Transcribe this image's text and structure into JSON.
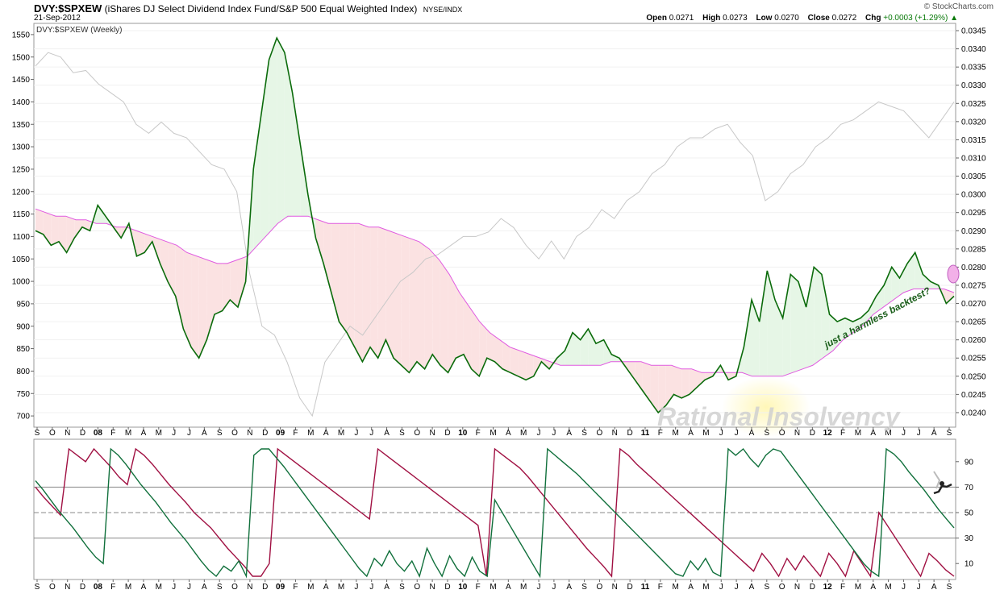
{
  "header": {
    "symbol": "DVY:$SPXEW",
    "description": "(iShares DJ Select Dividend Index Fund/S&P 500 Equal Weighted Index)",
    "exchange": "NYSE/INDX",
    "date": "21-Sep-2012",
    "brand": "© StockCharts.com",
    "open_label": "Open",
    "open": "0.0271",
    "high_label": "High",
    "high": "0.0273",
    "low_label": "Low",
    "low": "0.0270",
    "close_label": "Close",
    "close": "0.0272",
    "chg_label": "Chg",
    "chg": "+0.0003 (+1.29%)"
  },
  "legend_label": "DVY:$SPXEW (Weekly)",
  "annotation": "just a harmless backtest?",
  "watermark": "Rational Insolvency",
  "colors": {
    "ratio_line": "#0b6b0b",
    "moving_average": "#e05ae0",
    "sp500_line": "#c8c8c8",
    "fill_above": "#e6f6e6",
    "fill_below": "#fbe2e2",
    "osc_green": "#11703c",
    "osc_red": "#a01042"
  },
  "x_ticks": [
    "S",
    "O",
    "N",
    "D",
    "08",
    "F",
    "M",
    "A",
    "M",
    "J",
    "J",
    "A",
    "S",
    "O",
    "N",
    "D",
    "09",
    "F",
    "M",
    "A",
    "M",
    "J",
    "J",
    "A",
    "S",
    "O",
    "N",
    "D",
    "10",
    "F",
    "M",
    "A",
    "M",
    "J",
    "J",
    "A",
    "S",
    "O",
    "N",
    "D",
    "11",
    "F",
    "M",
    "A",
    "M",
    "J",
    "J",
    "A",
    "S",
    "O",
    "N",
    "D",
    "12",
    "F",
    "M",
    "A",
    "M",
    "J",
    "J",
    "A",
    "S"
  ],
  "chart_data": [
    {
      "type": "line",
      "title": "DVY:$SPXEW (Weekly)",
      "left_axis_ticks": [
        700,
        750,
        800,
        850,
        900,
        950,
        1000,
        1050,
        1100,
        1150,
        1200,
        1250,
        1300,
        1350,
        1400,
        1450,
        1500,
        1550
      ],
      "right_axis_ticks": [
        0.024,
        0.0245,
        0.025,
        0.0255,
        0.026,
        0.0265,
        0.027,
        0.0275,
        0.028,
        0.0285,
        0.029,
        0.0295,
        0.03,
        0.0305,
        0.031,
        0.0315,
        0.032,
        0.0325,
        0.033,
        0.0335,
        0.034,
        0.0345
      ],
      "ylim_right": [
        0.0236,
        0.0347
      ],
      "ylim_left": [
        675,
        1575
      ],
      "x_range": [
        "2007-09",
        "2012-09"
      ],
      "series": [
        {
          "name": "DVY:$SPXEW",
          "axis": "right",
          "values": [
            0.029,
            0.0289,
            0.0286,
            0.0287,
            0.0284,
            0.0288,
            0.0291,
            0.029,
            0.0297,
            0.0294,
            0.0291,
            0.0288,
            0.0292,
            0.0283,
            0.0284,
            0.0287,
            0.0281,
            0.0276,
            0.0272,
            0.0263,
            0.0258,
            0.0255,
            0.026,
            0.0267,
            0.0268,
            0.0271,
            0.0269,
            0.0276,
            0.0307,
            0.0322,
            0.0337,
            0.0343,
            0.0339,
            0.0328,
            0.0314,
            0.03,
            0.0288,
            0.0281,
            0.0273,
            0.0265,
            0.0262,
            0.0258,
            0.0254,
            0.0258,
            0.0255,
            0.026,
            0.0255,
            0.0253,
            0.0251,
            0.0254,
            0.0252,
            0.0256,
            0.0253,
            0.0251,
            0.0255,
            0.0256,
            0.0252,
            0.025,
            0.0255,
            0.0254,
            0.0252,
            0.0251,
            0.025,
            0.0249,
            0.025,
            0.0254,
            0.0252,
            0.0255,
            0.0257,
            0.0262,
            0.026,
            0.0263,
            0.0259,
            0.026,
            0.0256,
            0.0255,
            0.0252,
            0.0249,
            0.0246,
            0.0243,
            0.024,
            0.0242,
            0.0245,
            0.0244,
            0.0245,
            0.0247,
            0.0249,
            0.025,
            0.0253,
            0.0249,
            0.025,
            0.0258,
            0.0271,
            0.0265,
            0.0279,
            0.0271,
            0.0266,
            0.0278,
            0.0276,
            0.0269,
            0.028,
            0.0278,
            0.0267,
            0.0265,
            0.0266,
            0.0265,
            0.0266,
            0.0268,
            0.0272,
            0.0275,
            0.028,
            0.0277,
            0.0281,
            0.0284,
            0.0278,
            0.0276,
            0.0275,
            0.027,
            0.0272
          ]
        },
        {
          "name": "Moving Average",
          "axis": "right",
          "values": [
            0.0296,
            0.0295,
            0.0294,
            0.0294,
            0.0293,
            0.0293,
            0.0292,
            0.0292,
            0.0291,
            0.0291,
            0.029,
            0.0289,
            0.0288,
            0.0287,
            0.0286,
            0.0284,
            0.0283,
            0.0282,
            0.0281,
            0.0281,
            0.0282,
            0.0283,
            0.0286,
            0.0289,
            0.0292,
            0.0294,
            0.0294,
            0.0294,
            0.0293,
            0.0292,
            0.0292,
            0.0292,
            0.0292,
            0.0291,
            0.0291,
            0.029,
            0.0289,
            0.0288,
            0.0287,
            0.0285,
            0.0282,
            0.0278,
            0.0273,
            0.0269,
            0.0265,
            0.0262,
            0.026,
            0.0258,
            0.0257,
            0.0256,
            0.0255,
            0.0254,
            0.0253,
            0.0253,
            0.0253,
            0.0253,
            0.0253,
            0.0254,
            0.0254,
            0.0254,
            0.0254,
            0.0253,
            0.0253,
            0.0253,
            0.0252,
            0.0252,
            0.0251,
            0.0251,
            0.0251,
            0.0251,
            0.0251,
            0.025,
            0.025,
            0.025,
            0.025,
            0.0251,
            0.0252,
            0.0253,
            0.0255,
            0.0257,
            0.026,
            0.0262,
            0.0264,
            0.0267,
            0.0269,
            0.0271,
            0.0273,
            0.0274,
            0.0274,
            0.0274,
            0.0274,
            0.0273
          ]
        },
        {
          "name": "$SPXEW",
          "axis": "left",
          "values": [
            1480,
            1510,
            1500,
            1465,
            1470,
            1440,
            1420,
            1400,
            1350,
            1330,
            1355,
            1330,
            1320,
            1290,
            1260,
            1250,
            1200,
            1020,
            900,
            880,
            820,
            740,
            700,
            820,
            860,
            900,
            880,
            920,
            960,
            1000,
            1020,
            1050,
            1060,
            1080,
            1100,
            1100,
            1110,
            1140,
            1120,
            1080,
            1050,
            1090,
            1050,
            1100,
            1120,
            1160,
            1140,
            1180,
            1200,
            1240,
            1260,
            1300,
            1320,
            1320,
            1340,
            1350,
            1310,
            1280,
            1180,
            1200,
            1240,
            1260,
            1300,
            1320,
            1350,
            1360,
            1380,
            1400,
            1390,
            1380,
            1350,
            1320,
            1360,
            1400
          ]
        }
      ]
    },
    {
      "type": "line",
      "title": "",
      "y_ticks": [
        10,
        30,
        50,
        70,
        90
      ],
      "ylim": [
        0,
        100
      ],
      "reference_lines": [
        30,
        50,
        70
      ],
      "series": [
        {
          "name": "",
          "values": [
            75,
            68,
            60,
            52,
            45,
            38,
            30,
            22,
            15,
            10,
            100,
            95,
            88,
            80,
            72,
            65,
            58,
            50,
            42,
            35,
            28,
            20,
            12,
            5,
            0,
            8,
            4,
            12,
            0,
            95,
            100,
            100,
            93,
            86,
            78,
            70,
            62,
            54,
            46,
            38,
            30,
            22,
            14,
            6,
            0,
            14,
            8,
            20,
            10,
            4,
            12,
            0,
            22,
            10,
            0,
            16,
            6,
            0,
            15,
            4,
            0,
            60,
            50,
            40,
            30,
            20,
            10,
            0,
            100,
            95,
            90,
            85,
            80,
            74,
            68,
            62,
            56,
            50,
            44,
            38,
            32,
            26,
            20,
            14,
            8,
            2,
            0,
            12,
            5,
            14,
            3,
            0,
            100,
            95,
            100,
            92,
            86,
            95,
            100,
            98,
            90,
            82,
            74,
            66,
            58,
            50,
            42,
            34,
            26,
            18,
            10,
            4,
            0,
            100,
            96,
            90,
            82,
            75,
            68,
            60,
            52,
            45,
            38
          ]
        },
        {
          "name": "",
          "values": [
            70,
            62,
            55,
            48,
            100,
            95,
            90,
            100,
            93,
            86,
            78,
            72,
            100,
            95,
            88,
            80,
            72,
            65,
            58,
            50,
            44,
            38,
            30,
            22,
            15,
            8,
            0,
            0,
            10,
            100,
            95,
            90,
            85,
            80,
            75,
            70,
            65,
            60,
            55,
            50,
            45,
            100,
            95,
            90,
            85,
            80,
            75,
            70,
            65,
            60,
            55,
            50,
            45,
            40,
            0,
            100,
            95,
            90,
            85,
            78,
            70,
            62,
            54,
            46,
            38,
            30,
            22,
            15,
            8,
            0,
            100,
            95,
            88,
            82,
            76,
            70,
            64,
            58,
            52,
            46,
            40,
            34,
            28,
            22,
            16,
            10,
            4,
            18,
            10,
            0,
            14,
            5,
            16,
            8,
            0,
            18,
            10,
            0,
            20,
            10,
            0,
            50,
            40,
            30,
            20,
            10,
            0,
            18,
            12,
            5,
            0
          ]
        }
      ]
    }
  ]
}
